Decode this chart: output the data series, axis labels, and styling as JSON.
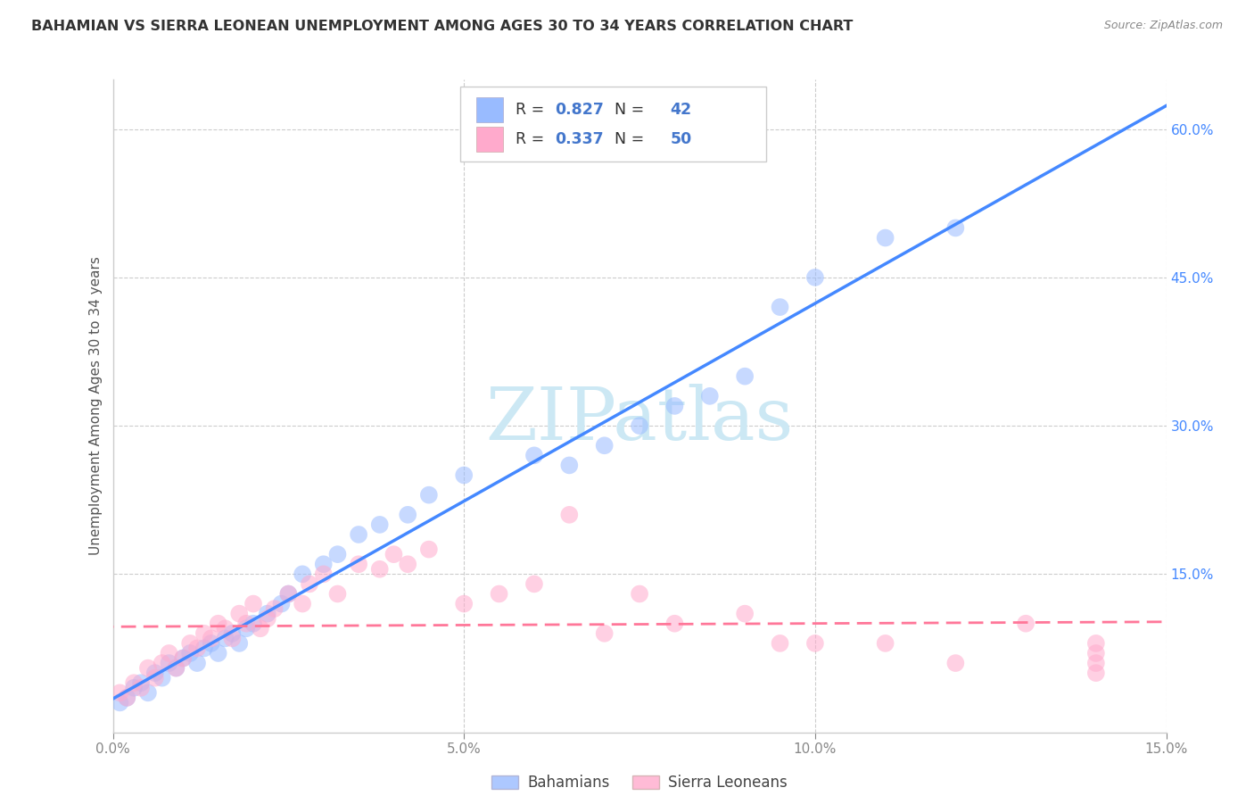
{
  "title": "BAHAMIAN VS SIERRA LEONEAN UNEMPLOYMENT AMONG AGES 30 TO 34 YEARS CORRELATION CHART",
  "source": "Source: ZipAtlas.com",
  "ylabel": "Unemployment Among Ages 30 to 34 years",
  "xlim": [
    0.0,
    0.15
  ],
  "ylim": [
    -0.01,
    0.65
  ],
  "xticks": [
    0.0,
    0.05,
    0.1,
    0.15
  ],
  "xtick_labels": [
    "0.0%",
    "5.0%",
    "10.0%",
    "15.0%"
  ],
  "yticks_right": [
    0.15,
    0.3,
    0.45,
    0.6
  ],
  "ytick_labels_right": [
    "15.0%",
    "30.0%",
    "45.0%",
    "60.0%"
  ],
  "background_color": "#ffffff",
  "grid_color": "#cccccc",
  "bahamian_color": "#99bbff",
  "sierra_leonean_color": "#ffaacc",
  "blue_line_color": "#4488ff",
  "pink_line_color": "#ff7799",
  "bahamian_R": 0.827,
  "bahamian_N": 42,
  "sierra_leonean_R": 0.337,
  "sierra_leonean_N": 50,
  "watermark": "ZIPatlas",
  "watermark_color": "#cce8f4",
  "legend_labels": [
    "Bahamians",
    "Sierra Leoneans"
  ],
  "legend_text_color": "#4477cc",
  "bahamian_scatter_x": [
    0.001,
    0.002,
    0.003,
    0.004,
    0.005,
    0.006,
    0.007,
    0.008,
    0.009,
    0.01,
    0.011,
    0.012,
    0.013,
    0.014,
    0.015,
    0.016,
    0.017,
    0.018,
    0.019,
    0.02,
    0.022,
    0.024,
    0.025,
    0.027,
    0.03,
    0.032,
    0.035,
    0.038,
    0.042,
    0.045,
    0.05,
    0.06,
    0.065,
    0.07,
    0.075,
    0.08,
    0.085,
    0.09,
    0.095,
    0.1,
    0.11,
    0.12
  ],
  "bahamian_scatter_y": [
    0.02,
    0.025,
    0.035,
    0.04,
    0.03,
    0.05,
    0.045,
    0.06,
    0.055,
    0.065,
    0.07,
    0.06,
    0.075,
    0.08,
    0.07,
    0.085,
    0.09,
    0.08,
    0.095,
    0.1,
    0.11,
    0.12,
    0.13,
    0.15,
    0.16,
    0.17,
    0.19,
    0.2,
    0.21,
    0.23,
    0.25,
    0.27,
    0.26,
    0.28,
    0.3,
    0.32,
    0.33,
    0.35,
    0.42,
    0.45,
    0.49,
    0.5
  ],
  "sierra_scatter_x": [
    0.001,
    0.002,
    0.003,
    0.004,
    0.005,
    0.006,
    0.007,
    0.008,
    0.009,
    0.01,
    0.011,
    0.012,
    0.013,
    0.014,
    0.015,
    0.016,
    0.017,
    0.018,
    0.019,
    0.02,
    0.021,
    0.022,
    0.023,
    0.025,
    0.027,
    0.028,
    0.03,
    0.032,
    0.035,
    0.038,
    0.04,
    0.042,
    0.045,
    0.05,
    0.055,
    0.06,
    0.065,
    0.07,
    0.075,
    0.08,
    0.09,
    0.095,
    0.1,
    0.11,
    0.12,
    0.13,
    0.14,
    0.14,
    0.14,
    0.14
  ],
  "sierra_scatter_y": [
    0.03,
    0.025,
    0.04,
    0.035,
    0.055,
    0.045,
    0.06,
    0.07,
    0.055,
    0.065,
    0.08,
    0.075,
    0.09,
    0.085,
    0.1,
    0.095,
    0.085,
    0.11,
    0.1,
    0.12,
    0.095,
    0.105,
    0.115,
    0.13,
    0.12,
    0.14,
    0.15,
    0.13,
    0.16,
    0.155,
    0.17,
    0.16,
    0.175,
    0.12,
    0.13,
    0.14,
    0.21,
    0.09,
    0.13,
    0.1,
    0.11,
    0.08,
    0.08,
    0.08,
    0.06,
    0.1,
    0.05,
    0.06,
    0.07,
    0.08
  ]
}
